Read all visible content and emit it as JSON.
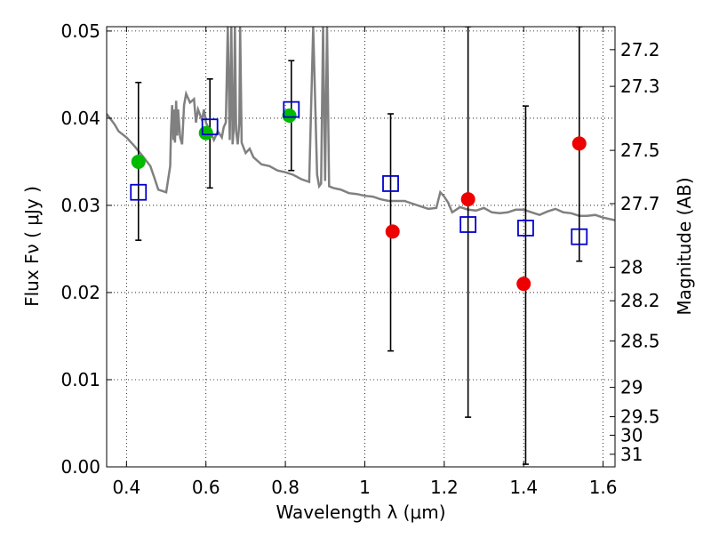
{
  "chart_data": {
    "type": "scatter",
    "xlabel": "Wavelength  λ (μm)",
    "ylabel": "Flux  Fν  ( μJy )",
    "y2label": "Magnitude (AB)",
    "xlim": [
      0.35,
      1.63
    ],
    "ylim": [
      0.0,
      0.0505
    ],
    "xticks": [
      {
        "value": 0.4,
        "label": "0.4"
      },
      {
        "value": 0.6,
        "label": "0.6"
      },
      {
        "value": 0.8,
        "label": "0.8"
      },
      {
        "value": 1.0,
        "label": "1"
      },
      {
        "value": 1.2,
        "label": "1.2"
      },
      {
        "value": 1.4,
        "label": "1.4"
      },
      {
        "value": 1.6,
        "label": "1.6"
      }
    ],
    "yticks": [
      {
        "value": 0.0,
        "label": "0.00"
      },
      {
        "value": 0.01,
        "label": "0.01"
      },
      {
        "value": 0.02,
        "label": "0.02"
      },
      {
        "value": 0.03,
        "label": "0.03"
      },
      {
        "value": 0.04,
        "label": "0.04"
      },
      {
        "value": 0.05,
        "label": "0.05"
      }
    ],
    "y2ticks": [
      {
        "value": 27.2,
        "label": "27.2"
      },
      {
        "value": 27.3,
        "label": "27.3"
      },
      {
        "value": 27.5,
        "label": "27.5"
      },
      {
        "value": 27.7,
        "label": "27.7"
      },
      {
        "value": 28.0,
        "label": "28"
      },
      {
        "value": 28.2,
        "label": "28.2"
      },
      {
        "value": 28.5,
        "label": "28.5"
      },
      {
        "value": 29.0,
        "label": "29"
      },
      {
        "value": 29.5,
        "label": "29.5"
      },
      {
        "value": 30.0,
        "label": "30"
      },
      {
        "value": 31.0,
        "label": "31"
      }
    ],
    "grid": true,
    "colors": {
      "spectrum": "#808080",
      "green": "#00bb00",
      "red": "#ee0000",
      "blue_square": "#0000cc",
      "errorbar": "#000000"
    },
    "series": [
      {
        "kind": "line",
        "x": [
          0.35,
          0.37,
          0.38,
          0.4,
          0.42,
          0.44,
          0.46,
          0.47,
          0.48,
          0.5,
          0.51,
          0.512,
          0.515,
          0.518,
          0.52,
          0.522,
          0.525,
          0.528,
          0.53,
          0.535,
          0.54,
          0.545,
          0.55,
          0.56,
          0.565,
          0.57,
          0.575,
          0.58,
          0.59,
          0.595,
          0.6,
          0.62,
          0.63,
          0.64,
          0.645,
          0.65,
          0.655,
          0.66,
          0.664,
          0.667,
          0.67,
          0.673,
          0.676,
          0.68,
          0.684,
          0.686,
          0.69,
          0.7,
          0.71,
          0.72,
          0.74,
          0.76,
          0.78,
          0.8,
          0.82,
          0.84,
          0.86,
          0.87,
          0.88,
          0.885,
          0.89,
          0.895,
          0.9,
          0.905,
          0.91,
          0.92,
          0.94,
          0.96,
          0.98,
          1.0,
          1.02,
          1.04,
          1.06,
          1.08,
          1.1,
          1.12,
          1.14,
          1.16,
          1.18,
          1.19,
          1.2,
          1.21,
          1.22,
          1.24,
          1.26,
          1.28,
          1.3,
          1.32,
          1.34,
          1.36,
          1.38,
          1.4,
          1.42,
          1.44,
          1.46,
          1.48,
          1.5,
          1.52,
          1.54,
          1.56,
          1.58,
          1.6,
          1.63
        ],
        "y": [
          0.0405,
          0.0393,
          0.0385,
          0.0378,
          0.0368,
          0.0357,
          0.0345,
          0.0332,
          0.0318,
          0.0315,
          0.0345,
          0.0385,
          0.0415,
          0.0375,
          0.041,
          0.0372,
          0.042,
          0.038,
          0.041,
          0.0378,
          0.037,
          0.0415,
          0.0428,
          0.0418,
          0.042,
          0.0422,
          0.0395,
          0.041,
          0.0398,
          0.041,
          0.0395,
          0.0375,
          0.0385,
          0.0378,
          0.039,
          0.0395,
          0.0505,
          0.0375,
          0.0505,
          0.037,
          0.0388,
          0.0505,
          0.0385,
          0.037,
          0.0395,
          0.0505,
          0.0372,
          0.036,
          0.0365,
          0.0355,
          0.0347,
          0.0345,
          0.034,
          0.0338,
          0.0335,
          0.033,
          0.0327,
          0.0505,
          0.0335,
          0.0322,
          0.0325,
          0.0505,
          0.0328,
          0.0505,
          0.0322,
          0.032,
          0.0318,
          0.0314,
          0.0313,
          0.0311,
          0.031,
          0.0307,
          0.0305,
          0.0305,
          0.0305,
          0.0302,
          0.0299,
          0.0296,
          0.0297,
          0.0315,
          0.031,
          0.0303,
          0.0292,
          0.0298,
          0.0295,
          0.0294,
          0.0297,
          0.0292,
          0.0291,
          0.0292,
          0.0295,
          0.0295,
          0.0292,
          0.0289,
          0.0293,
          0.0296,
          0.0292,
          0.0291,
          0.0288,
          0.0288,
          0.0289,
          0.0286,
          0.0283
        ]
      },
      {
        "kind": "points-circle",
        "color": "green",
        "x": [
          0.43,
          0.6,
          0.81
        ],
        "y": [
          0.035,
          0.0383,
          0.0403
        ]
      },
      {
        "kind": "points-circle",
        "color": "red",
        "x": [
          1.07,
          1.26,
          1.4,
          1.54
        ],
        "y": [
          0.027,
          0.0307,
          0.021,
          0.0371
        ]
      },
      {
        "kind": "points-square",
        "color": "blue_square",
        "x": [
          0.43,
          0.61,
          0.815,
          1.065,
          1.26,
          1.405,
          1.54
        ],
        "y": [
          0.0315,
          0.039,
          0.041,
          0.0325,
          0.0278,
          0.0274,
          0.0264
        ]
      },
      {
        "kind": "errorbars",
        "x": [
          0.43,
          0.61,
          0.815,
          1.065,
          1.26,
          1.405,
          1.54
        ],
        "ylow": [
          0.026,
          0.032,
          0.034,
          0.0133,
          0.0057,
          0.0003,
          0.0236
        ],
        "yhigh": [
          0.0441,
          0.0445,
          0.0466,
          0.0405,
          0.0505,
          0.0414,
          0.0505
        ]
      }
    ]
  }
}
